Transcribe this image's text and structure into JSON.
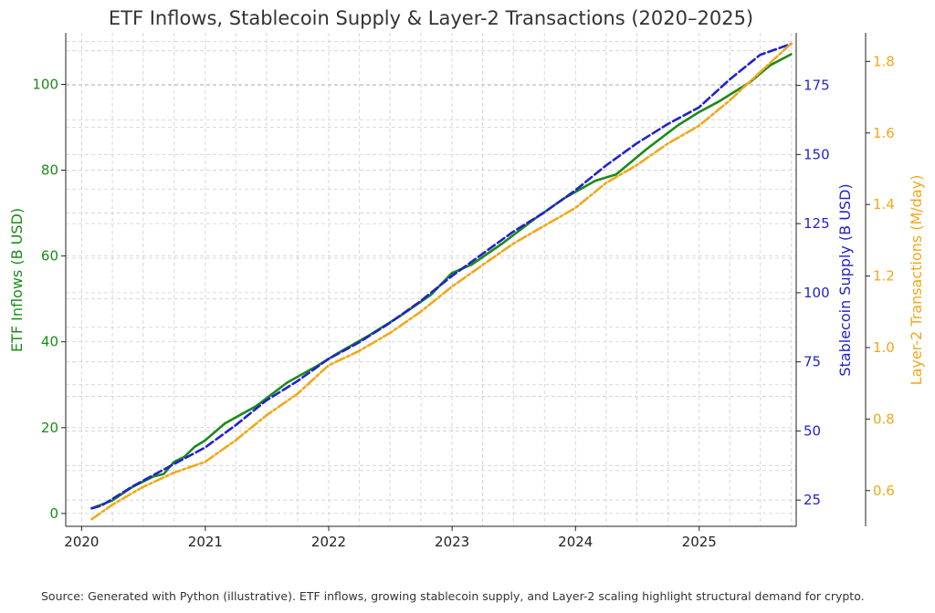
{
  "chart_data": {
    "type": "line",
    "title": "ETF Inflows, Stablecoin Supply & Layer-2 Transactions (2020–2025)",
    "x_axis": {
      "tick_labels": [
        "2020",
        "2021",
        "2022",
        "2023",
        "2024",
        "2025"
      ],
      "range": [
        "2019-11-15",
        "2025-10-15"
      ],
      "grid": true
    },
    "y_axes": [
      {
        "id": "etf",
        "label": "ETF Inflows (B USD)",
        "side": "left",
        "range": [
          -3,
          112
        ],
        "ticks": [
          0,
          20,
          40,
          60,
          80,
          100
        ],
        "color": "#1a8a1a",
        "grid": true
      },
      {
        "id": "stable",
        "label": "Stablecoin Supply (B USD)",
        "side": "right",
        "range": [
          15.5,
          194
        ],
        "ticks": [
          25,
          50,
          75,
          100,
          125,
          150,
          175
        ],
        "color": "#2222cc",
        "grid": true
      },
      {
        "id": "l2",
        "label": "Layer-2 Transactions (M/day)",
        "side": "right-outer",
        "range": [
          0.5,
          1.88
        ],
        "ticks": [
          0.6,
          0.8,
          1.0,
          1.2,
          1.4,
          1.6,
          1.8
        ],
        "color": "#f0a81a",
        "grid": false
      }
    ],
    "series": [
      {
        "name": "ETF Inflows",
        "axis": "etf",
        "color": "#1a8a1a",
        "style": "solid",
        "points": [
          [
            "2020-01-31",
            1.2
          ],
          [
            "2020-03-31",
            3.0
          ],
          [
            "2020-05-31",
            6.2
          ],
          [
            "2020-07-31",
            8.6
          ],
          [
            "2020-08-31",
            9.2
          ],
          [
            "2020-09-30",
            12.0
          ],
          [
            "2020-10-31",
            13.2
          ],
          [
            "2020-11-30",
            15.5
          ],
          [
            "2020-12-31",
            17.0
          ],
          [
            "2021-02-28",
            21.0
          ],
          [
            "2021-05-31",
            25.0
          ],
          [
            "2021-08-31",
            30.5
          ],
          [
            "2021-11-30",
            34.5
          ],
          [
            "2022-01-31",
            37.5
          ],
          [
            "2022-04-30",
            41.5
          ],
          [
            "2022-07-31",
            46.0
          ],
          [
            "2022-10-31",
            51.0
          ],
          [
            "2022-12-31",
            56.0
          ],
          [
            "2023-02-28",
            58.0
          ],
          [
            "2023-05-31",
            63.0
          ],
          [
            "2023-08-31",
            68.5
          ],
          [
            "2023-11-30",
            73.5
          ],
          [
            "2024-02-28",
            77.5
          ],
          [
            "2024-04-30",
            79.0
          ],
          [
            "2024-07-31",
            85.0
          ],
          [
            "2024-10-31",
            90.5
          ],
          [
            "2024-12-31",
            93.5
          ],
          [
            "2025-02-28",
            96.0
          ],
          [
            "2025-05-31",
            100.5
          ],
          [
            "2025-07-31",
            104.5
          ],
          [
            "2025-09-30",
            107.0
          ]
        ]
      },
      {
        "name": "Stablecoin Supply",
        "axis": "stable",
        "color": "#2222cc",
        "style": "dashed",
        "points": [
          [
            "2020-01-31",
            22
          ],
          [
            "2020-02-29",
            23
          ],
          [
            "2020-05-31",
            30
          ],
          [
            "2020-07-31",
            34
          ],
          [
            "2020-09-30",
            38
          ],
          [
            "2020-12-31",
            44
          ],
          [
            "2021-03-31",
            52
          ],
          [
            "2021-06-30",
            61
          ],
          [
            "2021-09-30",
            68
          ],
          [
            "2021-12-31",
            76
          ],
          [
            "2022-03-31",
            82
          ],
          [
            "2022-06-30",
            89
          ],
          [
            "2022-09-30",
            97
          ],
          [
            "2022-12-31",
            106
          ],
          [
            "2023-03-31",
            114
          ],
          [
            "2023-06-30",
            122
          ],
          [
            "2023-09-30",
            129
          ],
          [
            "2023-12-31",
            137
          ],
          [
            "2024-03-31",
            146
          ],
          [
            "2024-06-30",
            154
          ],
          [
            "2024-09-30",
            161
          ],
          [
            "2024-12-31",
            167
          ],
          [
            "2025-03-31",
            177
          ],
          [
            "2025-06-30",
            186
          ],
          [
            "2025-09-30",
            190
          ]
        ]
      },
      {
        "name": "Layer-2 Transactions",
        "axis": "l2",
        "color": "#f0a81a",
        "style": "dashdot",
        "points": [
          [
            "2020-01-31",
            0.52
          ],
          [
            "2020-03-31",
            0.56
          ],
          [
            "2020-06-30",
            0.61
          ],
          [
            "2020-09-30",
            0.65
          ],
          [
            "2020-12-31",
            0.68
          ],
          [
            "2021-03-31",
            0.74
          ],
          [
            "2021-06-30",
            0.81
          ],
          [
            "2021-09-30",
            0.87
          ],
          [
            "2021-12-31",
            0.95
          ],
          [
            "2022-03-31",
            0.99
          ],
          [
            "2022-06-30",
            1.04
          ],
          [
            "2022-09-30",
            1.1
          ],
          [
            "2022-12-31",
            1.17
          ],
          [
            "2023-03-31",
            1.23
          ],
          [
            "2023-06-30",
            1.29
          ],
          [
            "2023-09-30",
            1.34
          ],
          [
            "2023-12-31",
            1.39
          ],
          [
            "2024-03-31",
            1.46
          ],
          [
            "2024-06-30",
            1.51
          ],
          [
            "2024-09-30",
            1.57
          ],
          [
            "2024-12-31",
            1.62
          ],
          [
            "2025-03-31",
            1.69
          ],
          [
            "2025-06-30",
            1.77
          ],
          [
            "2025-09-30",
            1.85
          ]
        ]
      }
    ]
  },
  "source_note": "Source: Generated with Python (illustrative). ETF inflows, growing stablecoin supply, and Layer-2 scaling highlight structural demand for crypto."
}
